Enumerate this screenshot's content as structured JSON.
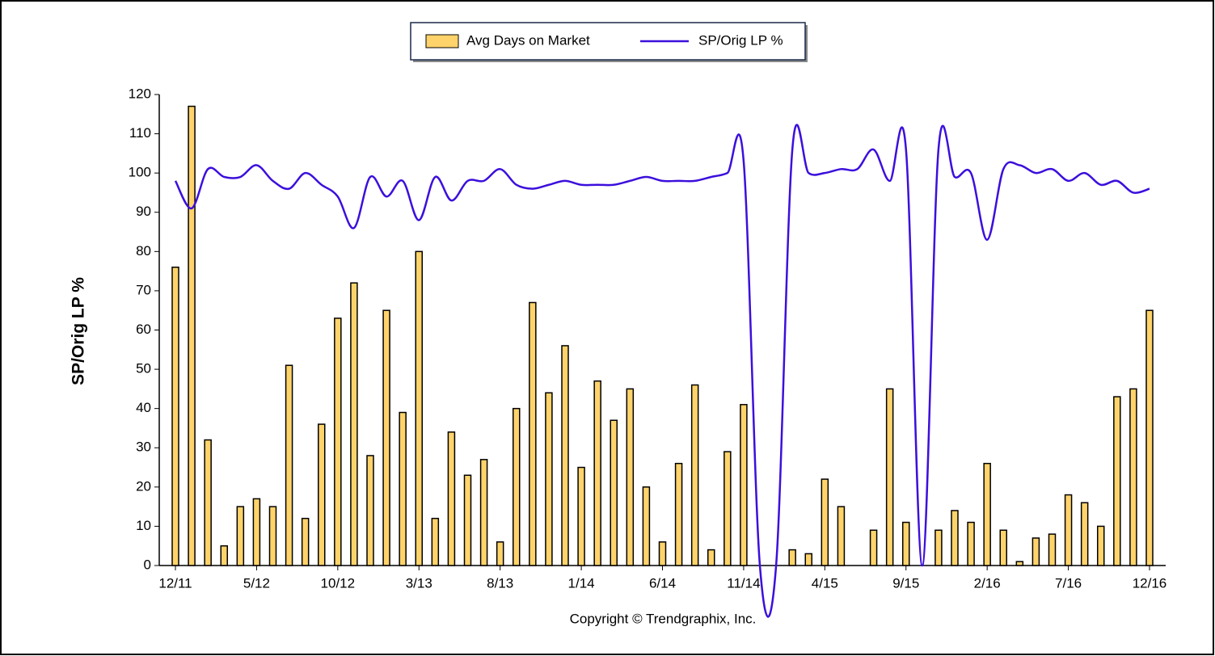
{
  "chart_data": {
    "type": "bar_line",
    "y_label": "SP/Orig  LP %",
    "footer": "Copyright © Trendgraphix, Inc.",
    "categories": [
      "12/11",
      null,
      null,
      null,
      null,
      "5/12",
      null,
      null,
      null,
      null,
      "10/12",
      null,
      null,
      null,
      null,
      "3/13",
      null,
      null,
      null,
      null,
      "8/13",
      null,
      null,
      null,
      null,
      "1/14",
      null,
      null,
      null,
      null,
      "6/14",
      null,
      null,
      null,
      null,
      "11/14",
      null,
      null,
      null,
      null,
      "4/15",
      null,
      null,
      null,
      null,
      "9/15",
      null,
      null,
      null,
      null,
      "2/16",
      null,
      null,
      null,
      null,
      "7/16",
      null,
      null,
      null,
      null,
      "12/16"
    ],
    "series": [
      {
        "name": "Avg Days on Market",
        "kind": "bar",
        "color": "#ffd36b",
        "values": [
          76,
          117,
          32,
          5,
          15,
          17,
          15,
          51,
          12,
          36,
          63,
          72,
          28,
          65,
          39,
          80,
          12,
          34,
          23,
          27,
          6,
          40,
          67,
          44,
          56,
          25,
          47,
          37,
          45,
          20,
          6,
          26,
          46,
          4,
          29,
          41,
          0,
          0,
          4,
          3,
          22,
          15,
          0,
          9,
          45,
          11,
          0,
          9,
          14,
          11,
          26,
          9,
          1,
          7,
          8,
          18,
          16,
          10,
          43,
          45,
          65
        ]
      },
      {
        "name": "SP/Orig LP %",
        "kind": "line",
        "color": "#3c0fdc",
        "values": [
          98,
          91,
          101,
          99,
          99,
          102,
          98,
          96,
          100,
          97,
          94,
          86,
          99,
          94,
          98,
          88,
          99,
          93,
          98,
          98,
          101,
          97,
          96,
          97,
          98,
          97,
          97,
          97,
          98,
          99,
          98,
          98,
          98,
          99,
          100,
          103,
          0,
          0,
          106,
          100,
          100,
          101,
          101,
          106,
          98,
          106,
          0,
          106,
          99,
          100,
          83,
          101,
          102,
          100,
          101,
          98,
          100,
          97,
          98,
          95,
          96
        ]
      }
    ],
    "ylim": [
      0,
      120
    ],
    "yticks": [
      0,
      10,
      20,
      30,
      40,
      50,
      60,
      70,
      80,
      90,
      100,
      110,
      120
    ]
  }
}
